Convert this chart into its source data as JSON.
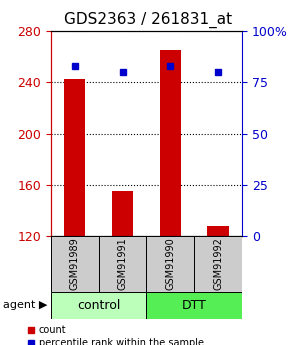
{
  "title": "GDS2363 / 261831_at",
  "samples": [
    "GSM91989",
    "GSM91991",
    "GSM91990",
    "GSM91992"
  ],
  "counts": [
    243,
    155,
    265,
    128
  ],
  "percentiles": [
    83,
    80,
    83,
    80
  ],
  "bar_color": "#cc0000",
  "percentile_color": "#0000cc",
  "ylim_left": [
    120,
    280
  ],
  "ylim_right": [
    0,
    100
  ],
  "yticks_left": [
    120,
    160,
    200,
    240,
    280
  ],
  "yticks_right": [
    0,
    25,
    50,
    75,
    100
  ],
  "sample_bg": "#cccccc",
  "control_color": "#bbffbb",
  "dtt_color": "#55ee55",
  "bar_width": 0.45,
  "title_fontsize": 11,
  "tick_fontsize": 9,
  "sample_fontsize": 7,
  "group_fontsize": 9,
  "legend_fontsize": 7
}
